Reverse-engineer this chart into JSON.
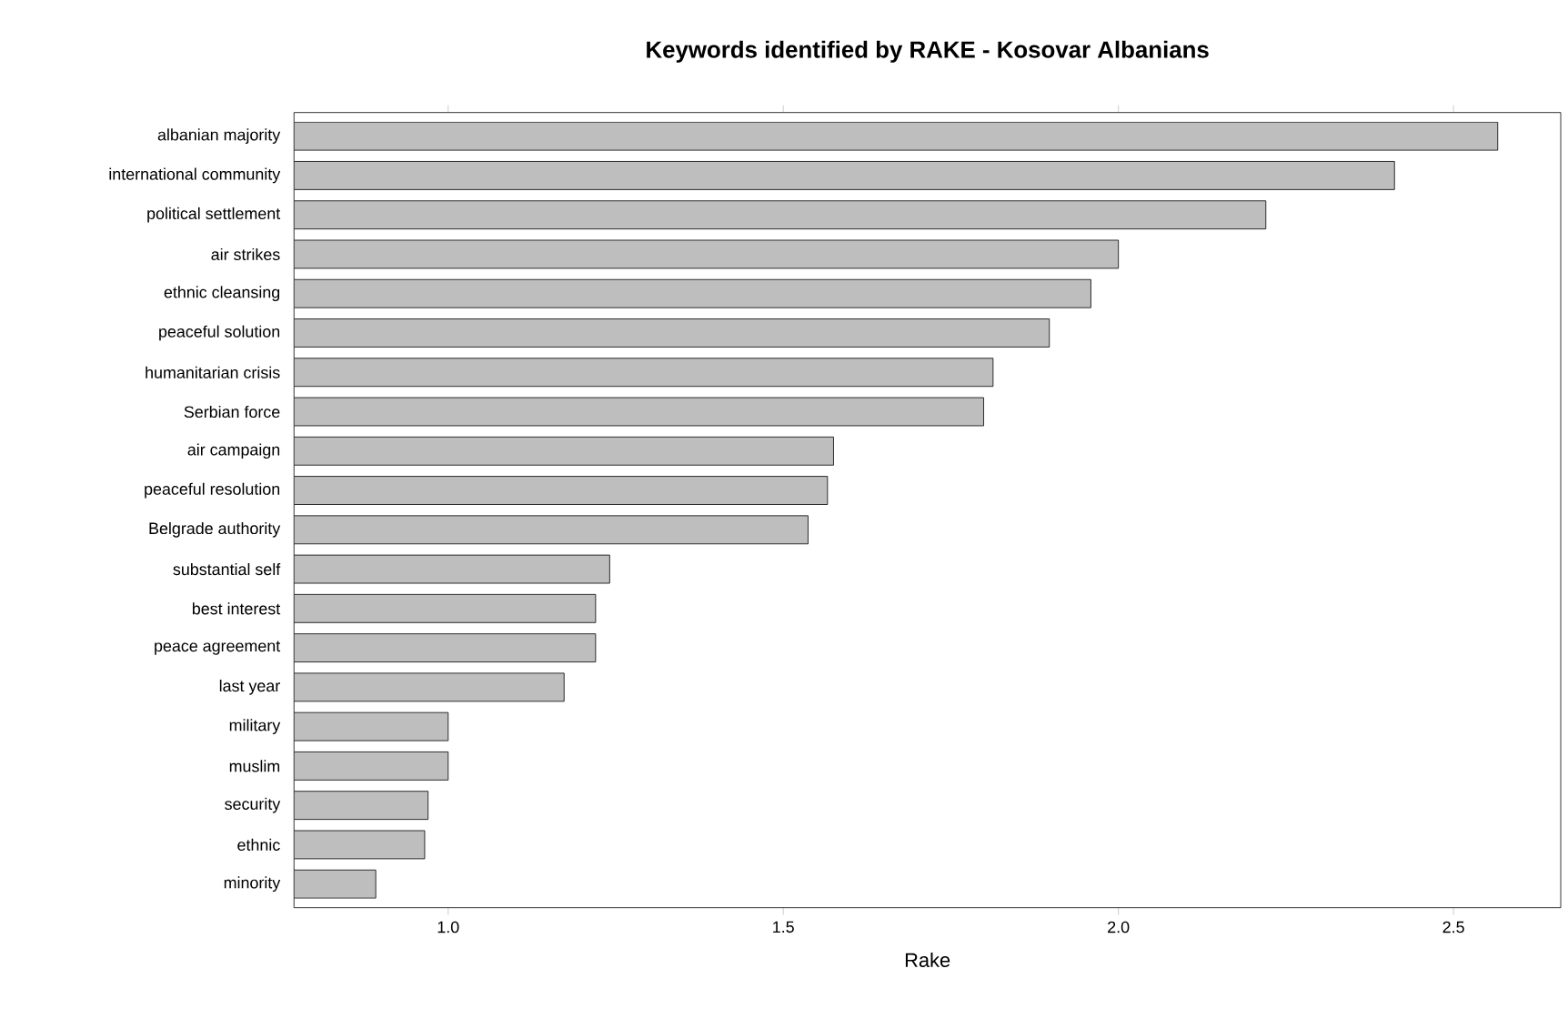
{
  "chart_data": {
    "type": "bar",
    "orientation": "horizontal",
    "title": "Keywords identified by RAKE - Kosovar Albanians",
    "xlabel": "Rake",
    "categories": [
      "albanian majority",
      "international community",
      "political settlement",
      "air strikes",
      "ethnic cleansing",
      "peaceful solution",
      "humanitarian crisis",
      "Serbian force",
      "air campaign",
      "peaceful resolution",
      "Belgrade authority",
      "substantial self",
      "best interest",
      "peace agreement",
      "last year",
      "military",
      "muslim",
      "security",
      "ethnic",
      "minority"
    ],
    "values": [
      2.566,
      2.412,
      2.22,
      2.0,
      1.959,
      1.897,
      1.813,
      1.799,
      1.575,
      1.566,
      1.537,
      1.241,
      1.22,
      1.22,
      1.173,
      1.0,
      1.0,
      0.97,
      0.965,
      0.892
    ],
    "color": "#bebebe",
    "xlim": [
      0.77,
      2.66
    ],
    "xticks": [
      {
        "value": 1,
        "label": "1.0"
      },
      1.5,
      {
        "value": 2,
        "label": "2.0"
      },
      2.5
    ]
  }
}
